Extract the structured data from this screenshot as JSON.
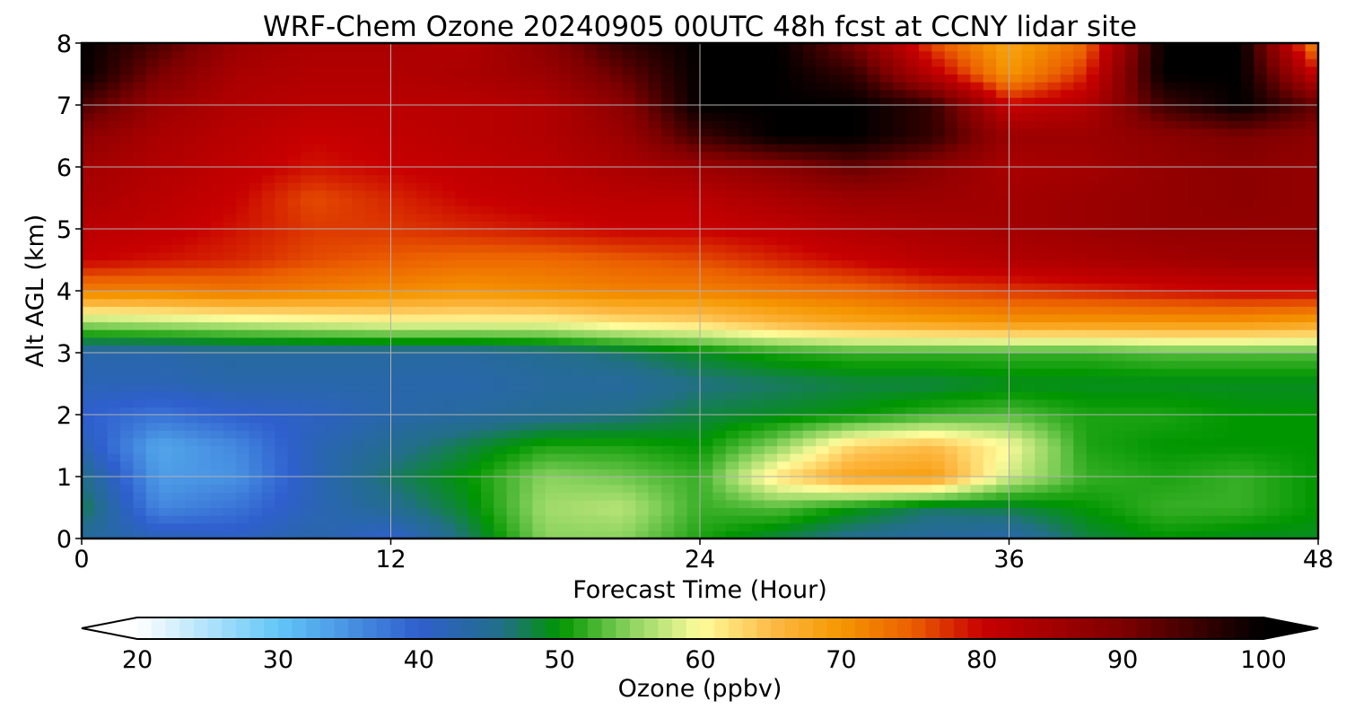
{
  "chart_data": {
    "type": "heatmap",
    "title": "WRF-Chem Ozone  20240905 00UTC 48h fcst at CCNY lidar site",
    "xlabel": "Forecast Time (Hour)",
    "ylabel": "Alt AGL (km)",
    "xlim": [
      0,
      48
    ],
    "ylim": [
      0,
      8
    ],
    "xticks": [
      0,
      12,
      24,
      36,
      48
    ],
    "yticks": [
      0,
      1,
      2,
      3,
      4,
      5,
      6,
      7,
      8
    ],
    "grid": true,
    "x": [
      0,
      3,
      6,
      9,
      12,
      15,
      18,
      21,
      24,
      27,
      30,
      33,
      36,
      39,
      42,
      45,
      48
    ],
    "y": [
      0,
      0.5,
      1,
      1.5,
      2,
      2.5,
      3,
      3.5,
      4,
      4.5,
      5,
      5.5,
      6,
      6.5,
      7,
      7.5,
      8
    ],
    "z": [
      [
        44,
        42,
        41,
        43,
        40,
        47,
        55,
        55,
        51,
        48,
        45,
        44,
        43,
        48,
        50,
        49,
        49
      ],
      [
        48,
        36,
        38,
        42,
        45,
        49,
        56,
        57,
        52,
        53,
        50,
        47,
        48,
        50,
        52,
        52,
        50
      ],
      [
        46,
        34,
        35,
        42,
        47,
        50,
        55,
        54,
        52,
        62,
        68,
        69,
        58,
        52,
        51,
        52,
        50
      ],
      [
        42,
        33,
        36,
        42,
        45,
        48,
        51,
        51,
        50,
        55,
        63,
        65,
        60,
        51,
        50,
        50,
        50
      ],
      [
        40,
        38,
        40,
        41,
        43,
        44,
        45,
        46,
        48,
        49,
        50,
        52,
        53,
        51,
        51,
        50,
        50
      ],
      [
        42,
        42,
        43,
        43,
        43,
        43,
        44,
        44,
        46,
        47,
        48,
        48,
        49,
        49,
        49,
        49,
        49
      ],
      [
        43,
        43,
        44,
        44,
        44,
        44,
        45,
        47,
        49,
        51,
        52,
        52,
        52,
        52,
        53,
        53,
        53
      ],
      [
        56,
        57,
        58,
        59,
        60,
        60,
        60,
        62,
        63,
        66,
        68,
        69,
        70,
        70,
        70,
        70,
        69
      ],
      [
        72,
        72,
        73,
        72,
        71,
        70,
        71,
        72,
        72,
        73,
        74,
        76,
        77,
        78,
        79,
        80,
        80
      ],
      [
        80,
        79,
        78,
        76,
        75,
        74,
        74,
        75,
        76,
        78,
        80,
        82,
        83,
        84,
        85,
        86,
        86
      ],
      [
        82,
        81,
        79,
        77,
        77,
        78,
        79,
        80,
        80,
        81,
        83,
        84,
        85,
        86,
        87,
        87,
        87
      ],
      [
        84,
        82,
        80,
        76,
        78,
        80,
        81,
        82,
        82,
        84,
        86,
        86,
        85,
        86,
        87,
        88,
        87
      ],
      [
        85,
        83,
        81,
        79,
        80,
        81,
        82,
        84,
        86,
        88,
        92,
        88,
        84,
        85,
        87,
        88,
        87
      ],
      [
        88,
        84,
        82,
        80,
        81,
        82,
        83,
        86,
        95,
        100,
        100,
        96,
        86,
        86,
        88,
        90,
        88
      ],
      [
        94,
        86,
        83,
        82,
        82,
        82,
        83,
        88,
        100,
        100,
        100,
        96,
        80,
        83,
        95,
        100,
        92
      ],
      [
        100,
        90,
        84,
        83,
        83,
        84,
        86,
        92,
        100,
        100,
        96,
        82,
        70,
        78,
        100,
        100,
        80
      ],
      [
        100,
        94,
        86,
        84,
        84,
        83,
        88,
        96,
        100,
        100,
        90,
        76,
        68,
        74,
        100,
        100,
        70
      ]
    ],
    "colorbar": {
      "label": "Ozone  (ppbv)",
      "min": 20,
      "max": 100,
      "ticks": [
        20,
        30,
        40,
        50,
        60,
        70,
        80,
        90,
        100
      ],
      "extend": "both",
      "stops": [
        {
          "v": 20,
          "c": "#ffffff"
        },
        {
          "v": 30,
          "c": "#62c6f7"
        },
        {
          "v": 40,
          "c": "#2f5fce"
        },
        {
          "v": 46,
          "c": "#226f86"
        },
        {
          "v": 50,
          "c": "#009600"
        },
        {
          "v": 55,
          "c": "#8ad35f"
        },
        {
          "v": 60,
          "c": "#fffc9c"
        },
        {
          "v": 65,
          "c": "#fdbb47"
        },
        {
          "v": 70,
          "c": "#f59600"
        },
        {
          "v": 75,
          "c": "#eb5f00"
        },
        {
          "v": 80,
          "c": "#c80000"
        },
        {
          "v": 90,
          "c": "#7d0000"
        },
        {
          "v": 100,
          "c": "#000000"
        }
      ]
    }
  }
}
